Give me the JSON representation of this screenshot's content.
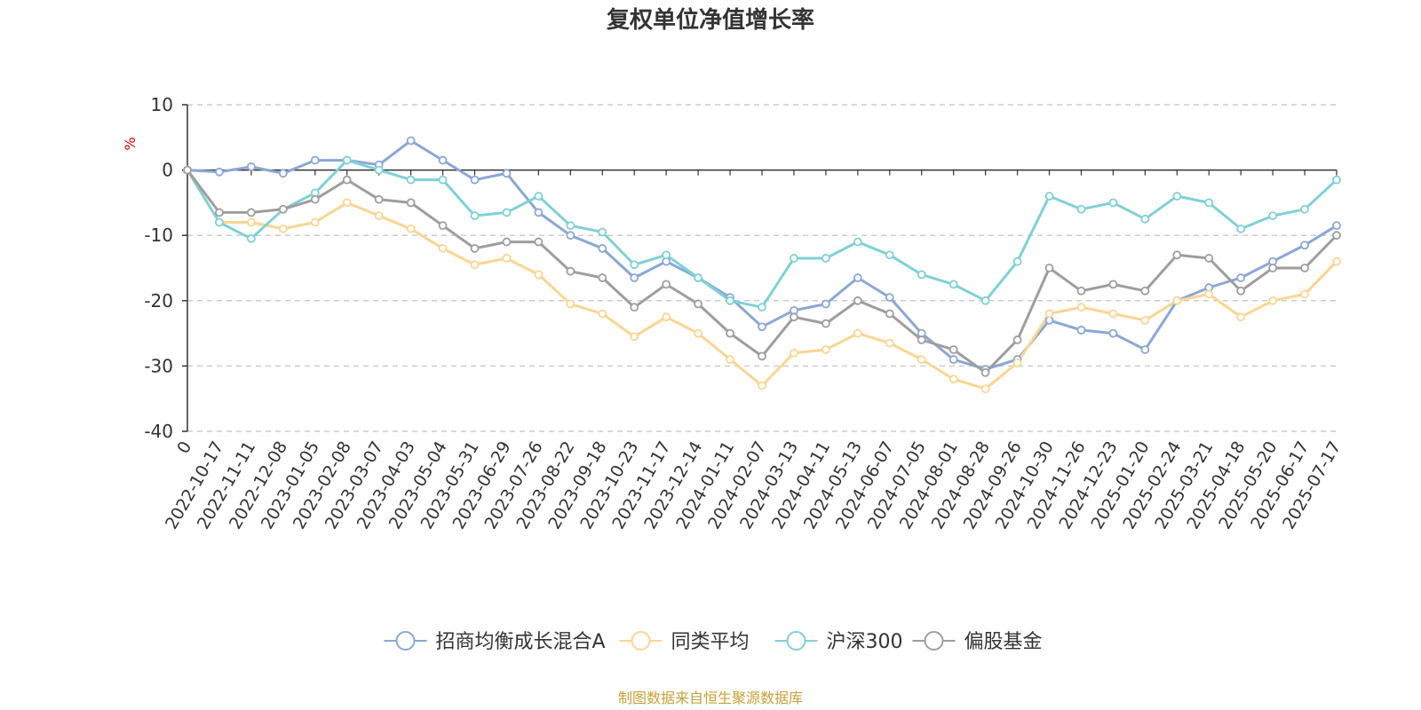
{
  "chart_data": {
    "type": "line",
    "title": "复权单位净值增长率",
    "ylabel": "%",
    "ylim": [
      -40,
      10
    ],
    "yticks": [
      10,
      0,
      -10,
      -20,
      -30,
      -40
    ],
    "grid": true,
    "legend_position": "bottom-center",
    "x": [
      "0",
      "2022-10-17",
      "2022-11-11",
      "2022-12-08",
      "2023-01-05",
      "2023-02-08",
      "2023-03-07",
      "2023-04-03",
      "2023-05-04",
      "2023-05-31",
      "2023-06-29",
      "2023-07-26",
      "2023-08-22",
      "2023-09-18",
      "2023-10-23",
      "2023-11-17",
      "2023-12-14",
      "2024-01-11",
      "2024-02-07",
      "2024-03-13",
      "2024-04-11",
      "2024-05-13",
      "2024-06-07",
      "2024-07-05",
      "2024-08-01",
      "2024-08-28",
      "2024-09-26",
      "2024-10-30",
      "2024-11-26",
      "2024-12-23",
      "2025-01-20",
      "2025-02-24",
      "2025-03-21",
      "2025-04-18",
      "2025-05-20",
      "2025-06-17",
      "2025-07-17"
    ],
    "series": [
      {
        "name": "招商均衡成长混合A",
        "color": "#8aa7d6",
        "values": [
          0,
          -0.3,
          0.5,
          -0.5,
          1.5,
          1.5,
          0.8,
          4.5,
          1.5,
          -1.5,
          -0.5,
          -6.5,
          -10,
          -12,
          -16.5,
          -14,
          -16.5,
          -19.5,
          -24,
          -21.5,
          -20.5,
          -16.5,
          -19.5,
          -25,
          -29,
          -30.5,
          -29,
          -23,
          -24.5,
          -25,
          -27.5,
          -20,
          -18,
          -16.5,
          -14,
          -11.5,
          -8.5
        ]
      },
      {
        "name": "同类平均",
        "color": "#fbd592",
        "values": [
          0,
          -8,
          -8,
          -9,
          -8,
          -5,
          -7,
          -9,
          -12,
          -14.5,
          -13.5,
          -16,
          -20.5,
          -22,
          -25.5,
          -22.5,
          -25,
          -29,
          -33,
          -28,
          -27.5,
          -25,
          -26.5,
          -29,
          -32,
          -33.5,
          -29.5,
          -22,
          -21,
          -22,
          -23,
          -20,
          -19,
          -22.5,
          -20,
          -19,
          -14
        ]
      },
      {
        "name": "沪深300",
        "color": "#7fd1d6",
        "values": [
          0,
          -8,
          -10.5,
          -6,
          -3.5,
          1.5,
          0,
          -1.5,
          -1.5,
          -7,
          -6.5,
          -4,
          -8.5,
          -9.5,
          -14.5,
          -13,
          -16.5,
          -20,
          -21,
          -13.5,
          -13.5,
          -11,
          -13,
          -16,
          -17.5,
          -20,
          -14,
          -4,
          -6,
          -5,
          -7.5,
          -4,
          -5,
          -9,
          -7,
          -6,
          -1.5
        ]
      },
      {
        "name": "偏股基金",
        "color": "#9e9e9e",
        "values": [
          0,
          -6.5,
          -6.5,
          -6,
          -4.5,
          -1.5,
          -4.5,
          -5,
          -8.5,
          -12,
          -11,
          -11,
          -15.5,
          -16.5,
          -21,
          -17.5,
          -20.5,
          -25,
          -28.5,
          -22.5,
          -23.5,
          -20,
          -22,
          -26,
          -27.5,
          -31,
          -26,
          -15,
          -18.5,
          -17.5,
          -18.5,
          -13,
          -13.5,
          -18.5,
          -15,
          -15,
          -10
        ]
      }
    ]
  },
  "source_text": "制图数据来自恒生聚源数据库",
  "colors": {
    "title": "#333333",
    "axis": "#333333",
    "grid": "#cccccc",
    "ylabel": "#e00000",
    "source": "#c8a13a"
  }
}
